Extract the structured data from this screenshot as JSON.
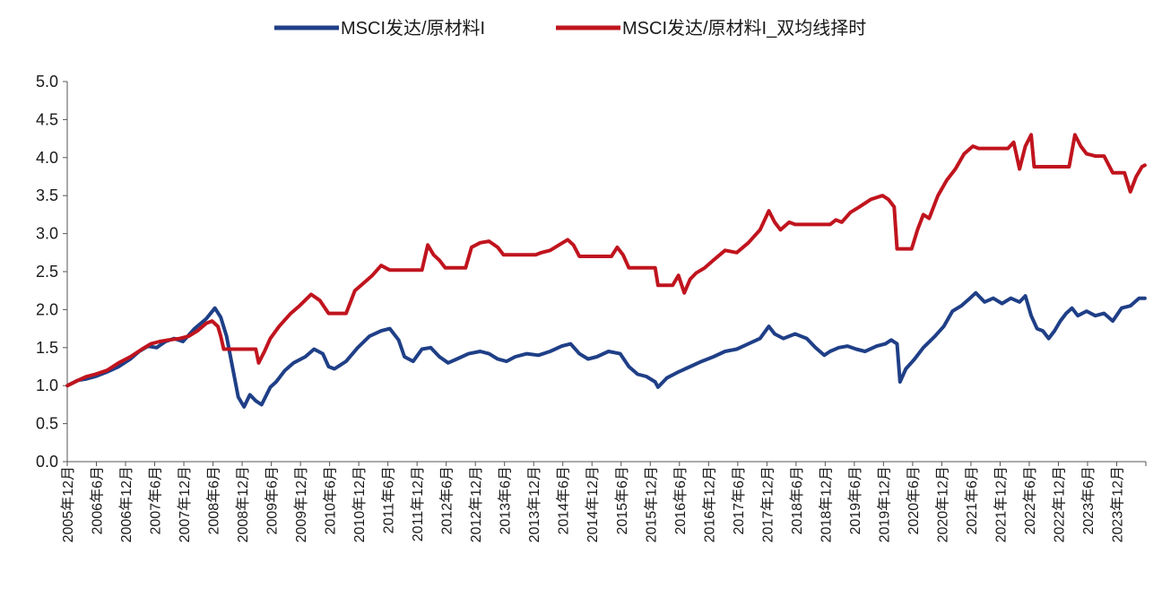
{
  "chart_data": {
    "type": "line",
    "title": "",
    "xlabel": "",
    "ylabel": "",
    "ylim": [
      0,
      5.0
    ],
    "yticks": [
      "0.0",
      "0.5",
      "1.0",
      "1.5",
      "2.0",
      "2.5",
      "3.0",
      "3.5",
      "4.0",
      "4.5",
      "5.0"
    ],
    "xlim": [
      2005.9167,
      2024.4167
    ],
    "xtick_labels": [
      "2005年12月",
      "2006年6月",
      "2006年12月",
      "2007年6月",
      "2007年12月",
      "2008年6月",
      "2008年12月",
      "2009年6月",
      "2009年12月",
      "2010年6月",
      "2010年12月",
      "2011年6月",
      "2011年12月",
      "2012年6月",
      "2012年12月",
      "2013年6月",
      "2013年12月",
      "2014年6月",
      "2014年12月",
      "2015年6月",
      "2015年12月",
      "2016年6月",
      "2016年12月",
      "2017年6月",
      "2017年12月",
      "2018年6月",
      "2018年12月",
      "2019年6月",
      "2019年12月",
      "2020年6月",
      "2020年12月",
      "2021年6月",
      "2021年12月",
      "2022年6月",
      "2022年12月",
      "2023年6月",
      "2023年12月"
    ],
    "legend_position": "top-center",
    "grid": false,
    "series": [
      {
        "name": "MSCI发达/原材料I",
        "color": "#1f3f87",
        "points": [
          [
            2005.92,
            1.0
          ],
          [
            2006.1,
            1.07
          ],
          [
            2006.25,
            1.09
          ],
          [
            2006.4,
            1.12
          ],
          [
            2006.6,
            1.18
          ],
          [
            2006.8,
            1.25
          ],
          [
            2007.0,
            1.35
          ],
          [
            2007.15,
            1.45
          ],
          [
            2007.3,
            1.52
          ],
          [
            2007.45,
            1.5
          ],
          [
            2007.6,
            1.58
          ],
          [
            2007.75,
            1.62
          ],
          [
            2007.9,
            1.58
          ],
          [
            2008.1,
            1.75
          ],
          [
            2008.3,
            1.88
          ],
          [
            2008.45,
            2.02
          ],
          [
            2008.55,
            1.9
          ],
          [
            2008.65,
            1.65
          ],
          [
            2008.75,
            1.25
          ],
          [
            2008.85,
            0.85
          ],
          [
            2008.95,
            0.72
          ],
          [
            2009.05,
            0.88
          ],
          [
            2009.15,
            0.8
          ],
          [
            2009.25,
            0.75
          ],
          [
            2009.4,
            0.98
          ],
          [
            2009.5,
            1.05
          ],
          [
            2009.65,
            1.2
          ],
          [
            2009.8,
            1.3
          ],
          [
            2010.0,
            1.38
          ],
          [
            2010.15,
            1.48
          ],
          [
            2010.3,
            1.42
          ],
          [
            2010.4,
            1.25
          ],
          [
            2010.5,
            1.22
          ],
          [
            2010.7,
            1.32
          ],
          [
            2010.9,
            1.5
          ],
          [
            2011.1,
            1.65
          ],
          [
            2011.3,
            1.72
          ],
          [
            2011.45,
            1.75
          ],
          [
            2011.6,
            1.6
          ],
          [
            2011.7,
            1.38
          ],
          [
            2011.85,
            1.32
          ],
          [
            2012.0,
            1.48
          ],
          [
            2012.15,
            1.5
          ],
          [
            2012.3,
            1.38
          ],
          [
            2012.45,
            1.3
          ],
          [
            2012.6,
            1.35
          ],
          [
            2012.8,
            1.42
          ],
          [
            2013.0,
            1.45
          ],
          [
            2013.15,
            1.42
          ],
          [
            2013.3,
            1.35
          ],
          [
            2013.45,
            1.32
          ],
          [
            2013.6,
            1.38
          ],
          [
            2013.8,
            1.42
          ],
          [
            2014.0,
            1.4
          ],
          [
            2014.2,
            1.45
          ],
          [
            2014.4,
            1.52
          ],
          [
            2014.55,
            1.55
          ],
          [
            2014.7,
            1.42
          ],
          [
            2014.85,
            1.35
          ],
          [
            2015.0,
            1.38
          ],
          [
            2015.2,
            1.45
          ],
          [
            2015.4,
            1.42
          ],
          [
            2015.55,
            1.25
          ],
          [
            2015.7,
            1.15
          ],
          [
            2015.85,
            1.12
          ],
          [
            2016.0,
            1.05
          ],
          [
            2016.05,
            0.98
          ],
          [
            2016.2,
            1.1
          ],
          [
            2016.4,
            1.18
          ],
          [
            2016.6,
            1.25
          ],
          [
            2016.8,
            1.32
          ],
          [
            2017.0,
            1.38
          ],
          [
            2017.2,
            1.45
          ],
          [
            2017.4,
            1.48
          ],
          [
            2017.6,
            1.55
          ],
          [
            2017.8,
            1.62
          ],
          [
            2017.95,
            1.78
          ],
          [
            2018.05,
            1.68
          ],
          [
            2018.2,
            1.62
          ],
          [
            2018.4,
            1.68
          ],
          [
            2018.6,
            1.62
          ],
          [
            2018.75,
            1.5
          ],
          [
            2018.9,
            1.4
          ],
          [
            2019.0,
            1.45
          ],
          [
            2019.15,
            1.5
          ],
          [
            2019.3,
            1.52
          ],
          [
            2019.45,
            1.48
          ],
          [
            2019.6,
            1.45
          ],
          [
            2019.8,
            1.52
          ],
          [
            2019.95,
            1.55
          ],
          [
            2020.05,
            1.6
          ],
          [
            2020.15,
            1.55
          ],
          [
            2020.2,
            1.05
          ],
          [
            2020.3,
            1.22
          ],
          [
            2020.45,
            1.35
          ],
          [
            2020.6,
            1.5
          ],
          [
            2020.8,
            1.65
          ],
          [
            2020.95,
            1.78
          ],
          [
            2021.1,
            1.98
          ],
          [
            2021.25,
            2.05
          ],
          [
            2021.4,
            2.15
          ],
          [
            2021.5,
            2.22
          ],
          [
            2021.65,
            2.1
          ],
          [
            2021.8,
            2.15
          ],
          [
            2021.95,
            2.08
          ],
          [
            2022.1,
            2.15
          ],
          [
            2022.25,
            2.1
          ],
          [
            2022.35,
            2.18
          ],
          [
            2022.45,
            1.92
          ],
          [
            2022.55,
            1.75
          ],
          [
            2022.65,
            1.72
          ],
          [
            2022.75,
            1.62
          ],
          [
            2022.85,
            1.72
          ],
          [
            2022.95,
            1.85
          ],
          [
            2023.05,
            1.95
          ],
          [
            2023.15,
            2.02
          ],
          [
            2023.25,
            1.92
          ],
          [
            2023.4,
            1.98
          ],
          [
            2023.55,
            1.92
          ],
          [
            2023.7,
            1.95
          ],
          [
            2023.85,
            1.85
          ],
          [
            2024.0,
            2.02
          ],
          [
            2024.15,
            2.05
          ],
          [
            2024.3,
            2.15
          ],
          [
            2024.4,
            2.15
          ]
        ]
      },
      {
        "name": "MSCI发达/原材料I_双均线择时",
        "color": "#c0141e",
        "points": [
          [
            2005.92,
            1.0
          ],
          [
            2006.1,
            1.07
          ],
          [
            2006.25,
            1.12
          ],
          [
            2006.4,
            1.15
          ],
          [
            2006.6,
            1.2
          ],
          [
            2006.8,
            1.3
          ],
          [
            2007.0,
            1.38
          ],
          [
            2007.2,
            1.48
          ],
          [
            2007.35,
            1.55
          ],
          [
            2007.5,
            1.58
          ],
          [
            2007.65,
            1.6
          ],
          [
            2007.85,
            1.62
          ],
          [
            2008.0,
            1.65
          ],
          [
            2008.15,
            1.72
          ],
          [
            2008.3,
            1.82
          ],
          [
            2008.4,
            1.85
          ],
          [
            2008.5,
            1.78
          ],
          [
            2008.55,
            1.65
          ],
          [
            2008.6,
            1.48
          ],
          [
            2009.0,
            1.48
          ],
          [
            2009.15,
            1.48
          ],
          [
            2009.2,
            1.3
          ],
          [
            2009.3,
            1.45
          ],
          [
            2009.4,
            1.62
          ],
          [
            2009.55,
            1.78
          ],
          [
            2009.75,
            1.95
          ],
          [
            2009.9,
            2.05
          ],
          [
            2010.1,
            2.2
          ],
          [
            2010.25,
            2.12
          ],
          [
            2010.4,
            1.95
          ],
          [
            2010.55,
            1.95
          ],
          [
            2010.7,
            1.95
          ],
          [
            2010.85,
            2.25
          ],
          [
            2011.0,
            2.35
          ],
          [
            2011.15,
            2.45
          ],
          [
            2011.3,
            2.58
          ],
          [
            2011.45,
            2.52
          ],
          [
            2011.55,
            2.52
          ],
          [
            2012.0,
            2.52
          ],
          [
            2012.1,
            2.85
          ],
          [
            2012.2,
            2.72
          ],
          [
            2012.3,
            2.65
          ],
          [
            2012.4,
            2.55
          ],
          [
            2012.75,
            2.55
          ],
          [
            2012.85,
            2.82
          ],
          [
            2013.0,
            2.88
          ],
          [
            2013.15,
            2.9
          ],
          [
            2013.3,
            2.82
          ],
          [
            2013.4,
            2.72
          ],
          [
            2013.95,
            2.72
          ],
          [
            2014.05,
            2.75
          ],
          [
            2014.2,
            2.78
          ],
          [
            2014.35,
            2.85
          ],
          [
            2014.5,
            2.92
          ],
          [
            2014.6,
            2.85
          ],
          [
            2014.7,
            2.7
          ],
          [
            2015.25,
            2.7
          ],
          [
            2015.35,
            2.82
          ],
          [
            2015.45,
            2.72
          ],
          [
            2015.55,
            2.55
          ],
          [
            2016.0,
            2.55
          ],
          [
            2016.05,
            2.32
          ],
          [
            2016.3,
            2.32
          ],
          [
            2016.4,
            2.45
          ],
          [
            2016.5,
            2.22
          ],
          [
            2016.6,
            2.4
          ],
          [
            2016.7,
            2.48
          ],
          [
            2016.85,
            2.55
          ],
          [
            2017.0,
            2.65
          ],
          [
            2017.2,
            2.78
          ],
          [
            2017.4,
            2.75
          ],
          [
            2017.6,
            2.88
          ],
          [
            2017.8,
            3.05
          ],
          [
            2017.95,
            3.3
          ],
          [
            2018.05,
            3.15
          ],
          [
            2018.15,
            3.05
          ],
          [
            2018.3,
            3.15
          ],
          [
            2018.4,
            3.12
          ],
          [
            2018.5,
            3.12
          ],
          [
            2019.0,
            3.12
          ],
          [
            2019.1,
            3.18
          ],
          [
            2019.2,
            3.15
          ],
          [
            2019.35,
            3.28
          ],
          [
            2019.5,
            3.35
          ],
          [
            2019.7,
            3.45
          ],
          [
            2019.9,
            3.5
          ],
          [
            2020.0,
            3.45
          ],
          [
            2020.1,
            3.35
          ],
          [
            2020.15,
            2.8
          ],
          [
            2020.4,
            2.8
          ],
          [
            2020.5,
            3.05
          ],
          [
            2020.6,
            3.25
          ],
          [
            2020.7,
            3.2
          ],
          [
            2020.85,
            3.5
          ],
          [
            2021.0,
            3.7
          ],
          [
            2021.15,
            3.85
          ],
          [
            2021.3,
            4.05
          ],
          [
            2021.45,
            4.15
          ],
          [
            2021.55,
            4.12
          ],
          [
            2021.65,
            4.12
          ],
          [
            2022.05,
            4.12
          ],
          [
            2022.15,
            4.2
          ],
          [
            2022.25,
            3.85
          ],
          [
            2022.35,
            4.15
          ],
          [
            2022.45,
            4.3
          ],
          [
            2022.5,
            3.88
          ],
          [
            2022.7,
            3.88
          ],
          [
            2023.1,
            3.88
          ],
          [
            2023.2,
            4.3
          ],
          [
            2023.3,
            4.15
          ],
          [
            2023.4,
            4.05
          ],
          [
            2023.55,
            4.02
          ],
          [
            2023.7,
            4.02
          ],
          [
            2023.85,
            3.8
          ],
          [
            2024.05,
            3.8
          ],
          [
            2024.15,
            3.55
          ],
          [
            2024.25,
            3.75
          ],
          [
            2024.35,
            3.88
          ],
          [
            2024.4,
            3.9
          ]
        ]
      }
    ]
  }
}
